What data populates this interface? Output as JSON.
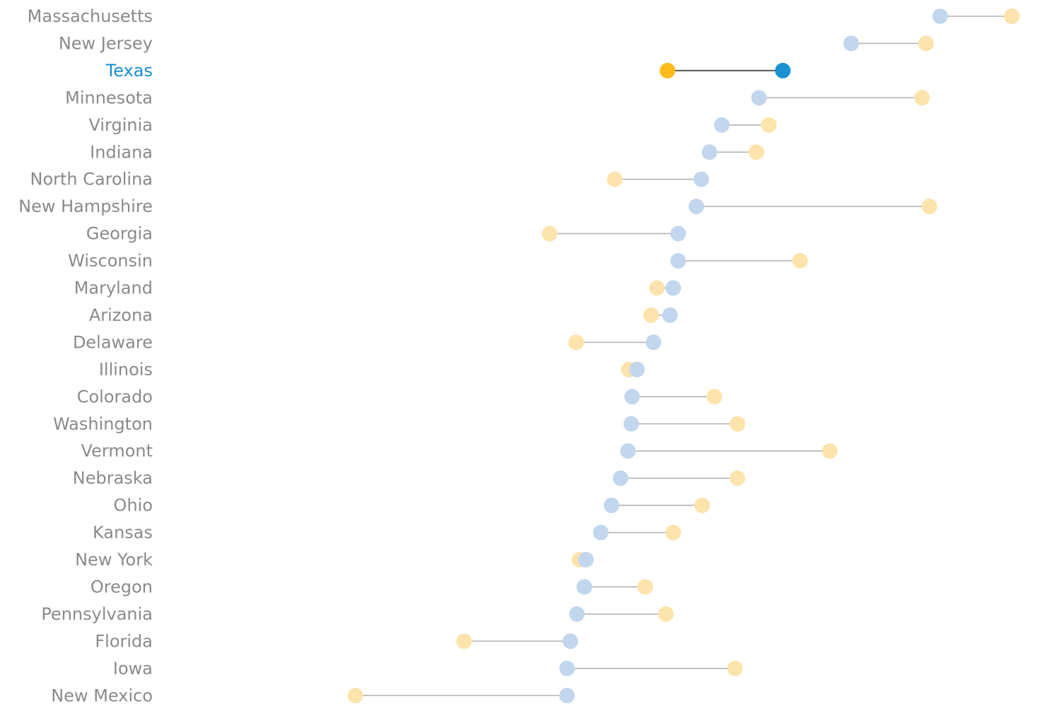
{
  "chart_data": {
    "type": "dumbbell",
    "title": "",
    "xlabel": "",
    "ylabel": "",
    "xlim": [
      0,
      100
    ],
    "grid": false,
    "legend": "none",
    "series_keys": [
      "blue",
      "yellow"
    ],
    "colors": {
      "label": "#8a8a8a",
      "label_highlight": "#1a8fd1",
      "connector": "#b3b3b3",
      "connector_highlight": "#555555",
      "blue_dot": "#c2d6ee",
      "yellow_dot": "#fde3ac",
      "blue_dot_highlight": "#1b92cf",
      "yellow_dot_highlight": "#ffba1c"
    },
    "highlight": "Texas",
    "rows": [
      {
        "label": "Massachusetts",
        "blue": 88.4,
        "yellow": 97.1
      },
      {
        "label": "New Jersey",
        "blue": 77.6,
        "yellow": 86.7
      },
      {
        "label": "Texas",
        "blue": 69.3,
        "yellow": 55.3
      },
      {
        "label": "Minnesota",
        "blue": 66.4,
        "yellow": 86.2
      },
      {
        "label": "Virginia",
        "blue": 61.9,
        "yellow": 67.6
      },
      {
        "label": "Indiana",
        "blue": 60.4,
        "yellow": 66.1
      },
      {
        "label": "North Carolina",
        "blue": 59.4,
        "yellow": 48.9
      },
      {
        "label": "New Hampshire",
        "blue": 58.8,
        "yellow": 87.1
      },
      {
        "label": "Georgia",
        "blue": 56.6,
        "yellow": 41.0
      },
      {
        "label": "Wisconsin",
        "blue": 56.6,
        "yellow": 71.4
      },
      {
        "label": "Maryland",
        "blue": 56.0,
        "yellow": 54.0
      },
      {
        "label": "Arizona",
        "blue": 55.6,
        "yellow": 53.3
      },
      {
        "label": "Delaware",
        "blue": 53.6,
        "yellow": 44.2
      },
      {
        "label": "Illinois",
        "blue": 51.6,
        "yellow": 50.6
      },
      {
        "label": "Colorado",
        "blue": 51.0,
        "yellow": 61.0
      },
      {
        "label": "Washington",
        "blue": 50.9,
        "yellow": 63.8
      },
      {
        "label": "Vermont",
        "blue": 50.5,
        "yellow": 75.0
      },
      {
        "label": "Nebraska",
        "blue": 49.6,
        "yellow": 63.8
      },
      {
        "label": "Ohio",
        "blue": 48.5,
        "yellow": 59.5
      },
      {
        "label": "Kansas",
        "blue": 47.2,
        "yellow": 56.0
      },
      {
        "label": "New York",
        "blue": 45.4,
        "yellow": 44.6
      },
      {
        "label": "Oregon",
        "blue": 45.2,
        "yellow": 52.6
      },
      {
        "label": "Pennsylvania",
        "blue": 44.3,
        "yellow": 55.1
      },
      {
        "label": "Florida",
        "blue": 43.5,
        "yellow": 30.6
      },
      {
        "label": "Iowa",
        "blue": 43.1,
        "yellow": 63.5
      },
      {
        "label": "New Mexico",
        "blue": 43.1,
        "yellow": 17.4
      }
    ]
  }
}
